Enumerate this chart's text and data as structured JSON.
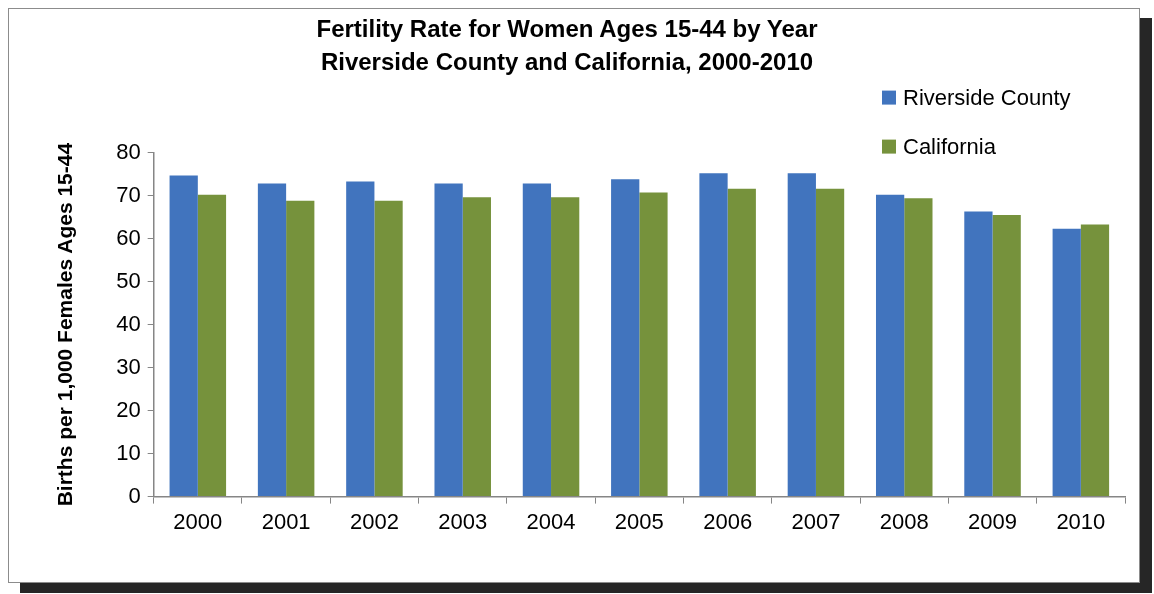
{
  "chart_data": {
    "type": "bar",
    "title": "Fertility Rate for Women Ages 15-44 by Year",
    "subtitle": "Riverside County and California, 2000-2010",
    "ylabel": "Births per 1,000 Females Ages 15-44",
    "categories": [
      "2000",
      "2001",
      "2002",
      "2003",
      "2004",
      "2005",
      "2006",
      "2007",
      "2008",
      "2009",
      "2010"
    ],
    "series": [
      {
        "name": "Riverside County",
        "color": "#4174be",
        "values": [
          74.7,
          72.8,
          73.3,
          72.8,
          72.8,
          73.8,
          75.2,
          75.2,
          70.2,
          66.3,
          62.3
        ]
      },
      {
        "name": "California",
        "color": "#76923c",
        "values": [
          70.2,
          68.8,
          68.8,
          69.6,
          69.6,
          70.7,
          71.6,
          71.6,
          69.4,
          65.5,
          63.3
        ]
      }
    ],
    "ylim": [
      0,
      80
    ],
    "yticks": [
      0,
      10,
      20,
      30,
      40,
      50,
      60,
      70,
      80
    ],
    "grid": false,
    "legend": "top right"
  }
}
